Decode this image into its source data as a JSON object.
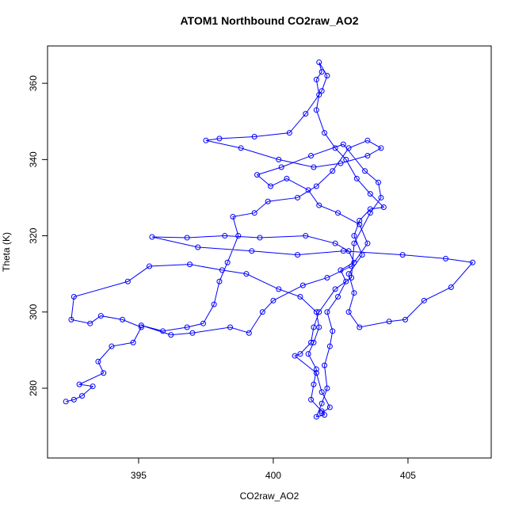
{
  "chart_data": {
    "type": "line",
    "marker": "circle",
    "color": "#0000ff",
    "title": "ATOM1 Northbound CO2raw_AO2",
    "x_label": "CO2raw_AO2",
    "y_label": "Theta (K)",
    "xlim": [
      391.62,
      408.09
    ],
    "ylim": [
      261.7,
      369.8
    ],
    "xticks": [
      395,
      400,
      405
    ],
    "yticks": [
      280,
      300,
      320,
      340,
      360
    ],
    "x": [
      392.3,
      392.6,
      392.9,
      393.3,
      392.8,
      393.7,
      393.5,
      394.0,
      394.8,
      395.1,
      394.4,
      393.6,
      393.2,
      392.5,
      392.6,
      394.6,
      395.4,
      396.9,
      398.1,
      399.0,
      400.2,
      401.0,
      401.6,
      401.7,
      401.5,
      401.3,
      401.6,
      401.5,
      401.4,
      401.8,
      401.9,
      401.6,
      401.8,
      402.0,
      401.9,
      402.1,
      402.2,
      402.0,
      402.4,
      402.7,
      402.5,
      403.0,
      402.8,
      402.3,
      401.2,
      399.5,
      398.2,
      396.8,
      395.5,
      397.2,
      399.2,
      400.9,
      402.6,
      404.8,
      406.4,
      407.4,
      406.6,
      405.6,
      404.9,
      404.3,
      403.2,
      402.8,
      403.0,
      402.8,
      403.3,
      403.0,
      403.2,
      403.6,
      404.1,
      403.6,
      403.1,
      402.7,
      402.3,
      401.9,
      401.6,
      401.7,
      401.6,
      401.8,
      401.7,
      402.0,
      401.8,
      401.2,
      400.6,
      399.3,
      398.0,
      397.5,
      398.8,
      400.2,
      401.5,
      402.5,
      403.5,
      404.0,
      403.5,
      402.8,
      402.2,
      401.6,
      400.9,
      399.8,
      399.3,
      398.5,
      398.7,
      398.3,
      398.0,
      397.8,
      397.4,
      396.8,
      395.9,
      395.1,
      396.2,
      397.0,
      398.4,
      399.1,
      399.6,
      400.0,
      401.1,
      402.0,
      402.9,
      403.5,
      403.2,
      402.4,
      401.7,
      401.3,
      400.5,
      399.9,
      399.4,
      400.3,
      401.4,
      402.6,
      403.4,
      403.9,
      404.0,
      403.6,
      403.0,
      402.9,
      402.3,
      401.7,
      401.5,
      401.4,
      401.0,
      400.8,
      401.6,
      401.8,
      402.1,
      401.8
    ],
    "y": [
      276.5,
      277,
      278,
      280.5,
      281,
      284,
      287,
      291,
      292,
      296,
      298,
      299,
      297,
      298,
      304,
      308,
      312,
      312.5,
      311,
      310,
      306,
      304,
      300,
      296,
      292,
      289,
      285,
      281,
      277,
      274,
      273,
      272.5,
      276,
      280,
      286,
      291,
      295,
      300,
      304,
      308,
      311,
      313,
      316,
      318,
      320,
      319.5,
      320,
      319.5,
      319.7,
      317,
      316,
      315,
      316,
      315,
      314,
      313,
      306.5,
      303,
      298,
      297.5,
      296,
      300,
      305,
      310,
      315,
      320,
      324,
      327,
      327.5,
      331,
      335,
      340,
      343,
      347,
      353,
      357,
      361,
      363,
      365.5,
      362,
      358,
      352,
      347,
      346,
      345.5,
      345,
      343,
      340,
      338,
      339,
      341,
      343,
      345,
      343,
      337,
      333,
      330,
      329,
      326,
      325,
      320,
      313,
      308,
      302,
      297,
      296,
      295,
      296.5,
      294,
      294.5,
      296,
      294.5,
      300,
      303,
      307,
      309,
      312,
      318,
      323,
      326,
      328,
      332,
      335,
      333,
      336,
      338,
      341,
      344,
      337,
      334,
      330,
      326,
      318,
      309,
      306,
      300,
      296,
      292,
      289,
      288.5,
      284,
      279,
      275,
      273.5
    ]
  }
}
